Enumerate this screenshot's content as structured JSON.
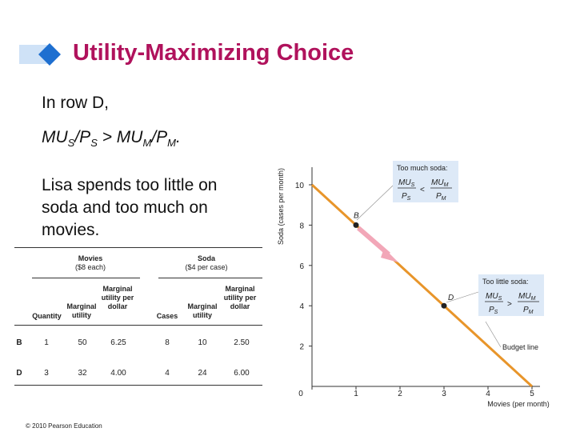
{
  "slide": {
    "title": "Utility-Maximizing Choice",
    "row_text": "In row D,",
    "inequality": {
      "mu1": "MU",
      "sub1": "S",
      "p1": "/P",
      "sub2": "S",
      "gt": " > ",
      "mu2": "MU",
      "sub3": "M",
      "p2": "/P",
      "sub4": "M",
      "end": "."
    },
    "paragraph": "Lisa spends too little on soda and too much on movies.",
    "footer": "© 2010 Pearson Education"
  },
  "table": {
    "group_movies": "Movies",
    "group_movies_price": "($8 each)",
    "group_soda": "Soda",
    "group_soda_price": "($4 per case)",
    "col_quantity": "Quantity",
    "col_mu_movies": "Marginal utility",
    "col_mupd_movies": "Marginal utility per dollar",
    "col_cases": "Cases",
    "col_mu_soda": "Marginal utility",
    "col_mupd_soda": "Marginal utility per dollar",
    "rows": [
      {
        "label": "B",
        "quantity": "1",
        "mu_m": "50",
        "mupd_m": "6.25",
        "cases": "8",
        "mu_s": "10",
        "mupd_s": "2.50"
      },
      {
        "label": "D",
        "quantity": "3",
        "mu_m": "32",
        "mupd_m": "4.00",
        "cases": "4",
        "mu_s": "24",
        "mupd_s": "6.00"
      }
    ]
  },
  "chart_data": {
    "type": "line",
    "xlabel": "Movies (per month)",
    "ylabel": "Soda (cases per month)",
    "xlim": [
      0,
      5
    ],
    "ylim": [
      0,
      10
    ],
    "x_ticks": [
      "0",
      "1",
      "2",
      "3",
      "4",
      "5"
    ],
    "y_ticks": [
      "0",
      "2",
      "4",
      "6",
      "8",
      "10"
    ],
    "series": [
      {
        "name": "Budget line",
        "x": [
          0,
          5
        ],
        "y": [
          10,
          0
        ],
        "color": "#e8952a"
      }
    ],
    "points": [
      {
        "label": "B",
        "x": 1,
        "y": 8
      },
      {
        "label": "D",
        "x": 3,
        "y": 4
      }
    ],
    "budget_label": "Budget line",
    "annotations": {
      "too_much": {
        "title": "Too much soda:",
        "mus": "MU",
        "mus_sub": "S",
        "ps": "P",
        "ps_sub": "S",
        "rel": "<",
        "mum": "MU",
        "mum_sub": "M",
        "pm": "P",
        "pm_sub": "M"
      },
      "too_little": {
        "title": "Too little soda:",
        "mus": "MU",
        "mus_sub": "S",
        "ps": "P",
        "ps_sub": "S",
        "rel": ">",
        "mum": "MU",
        "mum_sub": "M",
        "pm": "P",
        "pm_sub": "M"
      }
    },
    "colors": {
      "title": "#b0125c",
      "line": "#e8952a",
      "arrow": "#f2a7b8",
      "box": "#dde9f7"
    }
  }
}
